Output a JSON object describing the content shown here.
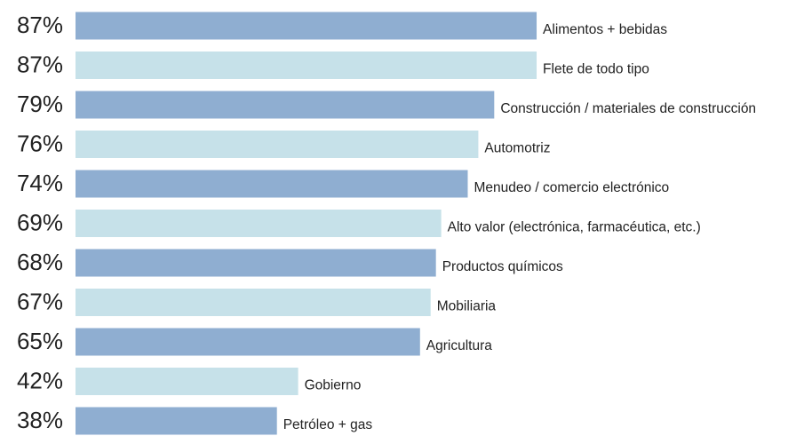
{
  "chart_data": {
    "type": "hbar",
    "categories": [
      "Alimentos + bebidas",
      "Flete de todo tipo",
      "Construcción / materiales de construcción",
      "Automotriz",
      "Menudeo / comercio electrónico",
      "Alto valor (electrónica, farmacéutica, etc.)",
      "Productos químicos",
      "Mobiliaria",
      "Agricultura",
      "Gobierno",
      "Petróleo + gas"
    ],
    "values": [
      87,
      87,
      79,
      76,
      74,
      69,
      68,
      67,
      65,
      42,
      38
    ],
    "value_labels": [
      "87%",
      "87%",
      "79%",
      "76%",
      "74%",
      "69%",
      "68%",
      "67%",
      "65%",
      "42%",
      "38%"
    ],
    "colors": [
      "#8faed1",
      "#c6e1e9",
      "#8faed1",
      "#c6e1e9",
      "#8faed1",
      "#c6e1e9",
      "#8faed1",
      "#c6e1e9",
      "#8faed1",
      "#c6e1e9",
      "#8faed1"
    ]
  }
}
